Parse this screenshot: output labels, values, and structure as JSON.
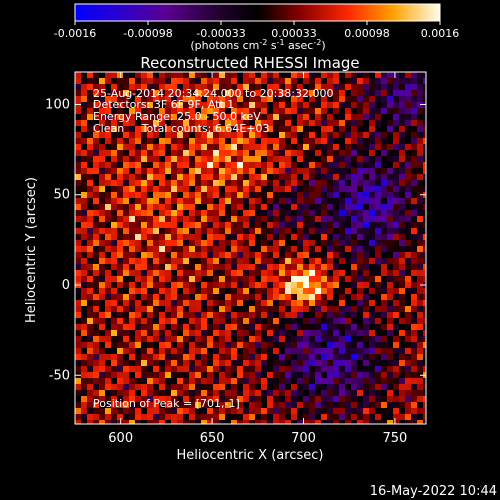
{
  "colorbar": {
    "ticks": [
      "-0.0016",
      "-0.00098",
      "-0.00033",
      "0.00033",
      "0.00098",
      "0.0016"
    ],
    "unit_label_text": "(photons cm",
    "unit_label_sup1": "-2",
    "unit_label_mid": " s",
    "unit_label_sup2": "-1",
    "unit_label_end": " asec",
    "unit_label_sup3": "-2",
    "unit_label_close": ")"
  },
  "chart_data": {
    "type": "heatmap",
    "title": "Reconstructed RHESSI Image",
    "xlabel": "Heliocentric X (arcsec)",
    "ylabel": "Heliocentric Y (arcsec)",
    "xlim": [
      575,
      767
    ],
    "ylim": [
      -77,
      118
    ],
    "xticks": [
      600,
      650,
      700,
      750
    ],
    "yticks": [
      -50,
      0,
      50,
      100
    ],
    "clim": [
      -0.0016,
      0.0016
    ],
    "colormap": "rainbow-heat",
    "peak": [
      701,
      -1
    ],
    "annotations": [
      "25-Aug-2014 20:34:24.000 to 20:38:32.000",
      "Detectors: 3F 6F 9F, Att 1",
      "Energy Range: 25.0 - 50.0 keV",
      "Clean     Total counts: 6.64E+03",
      "Position of Peak = [701,-1]"
    ]
  },
  "footer": {
    "timestamp": "16-May-2022 10:44"
  }
}
